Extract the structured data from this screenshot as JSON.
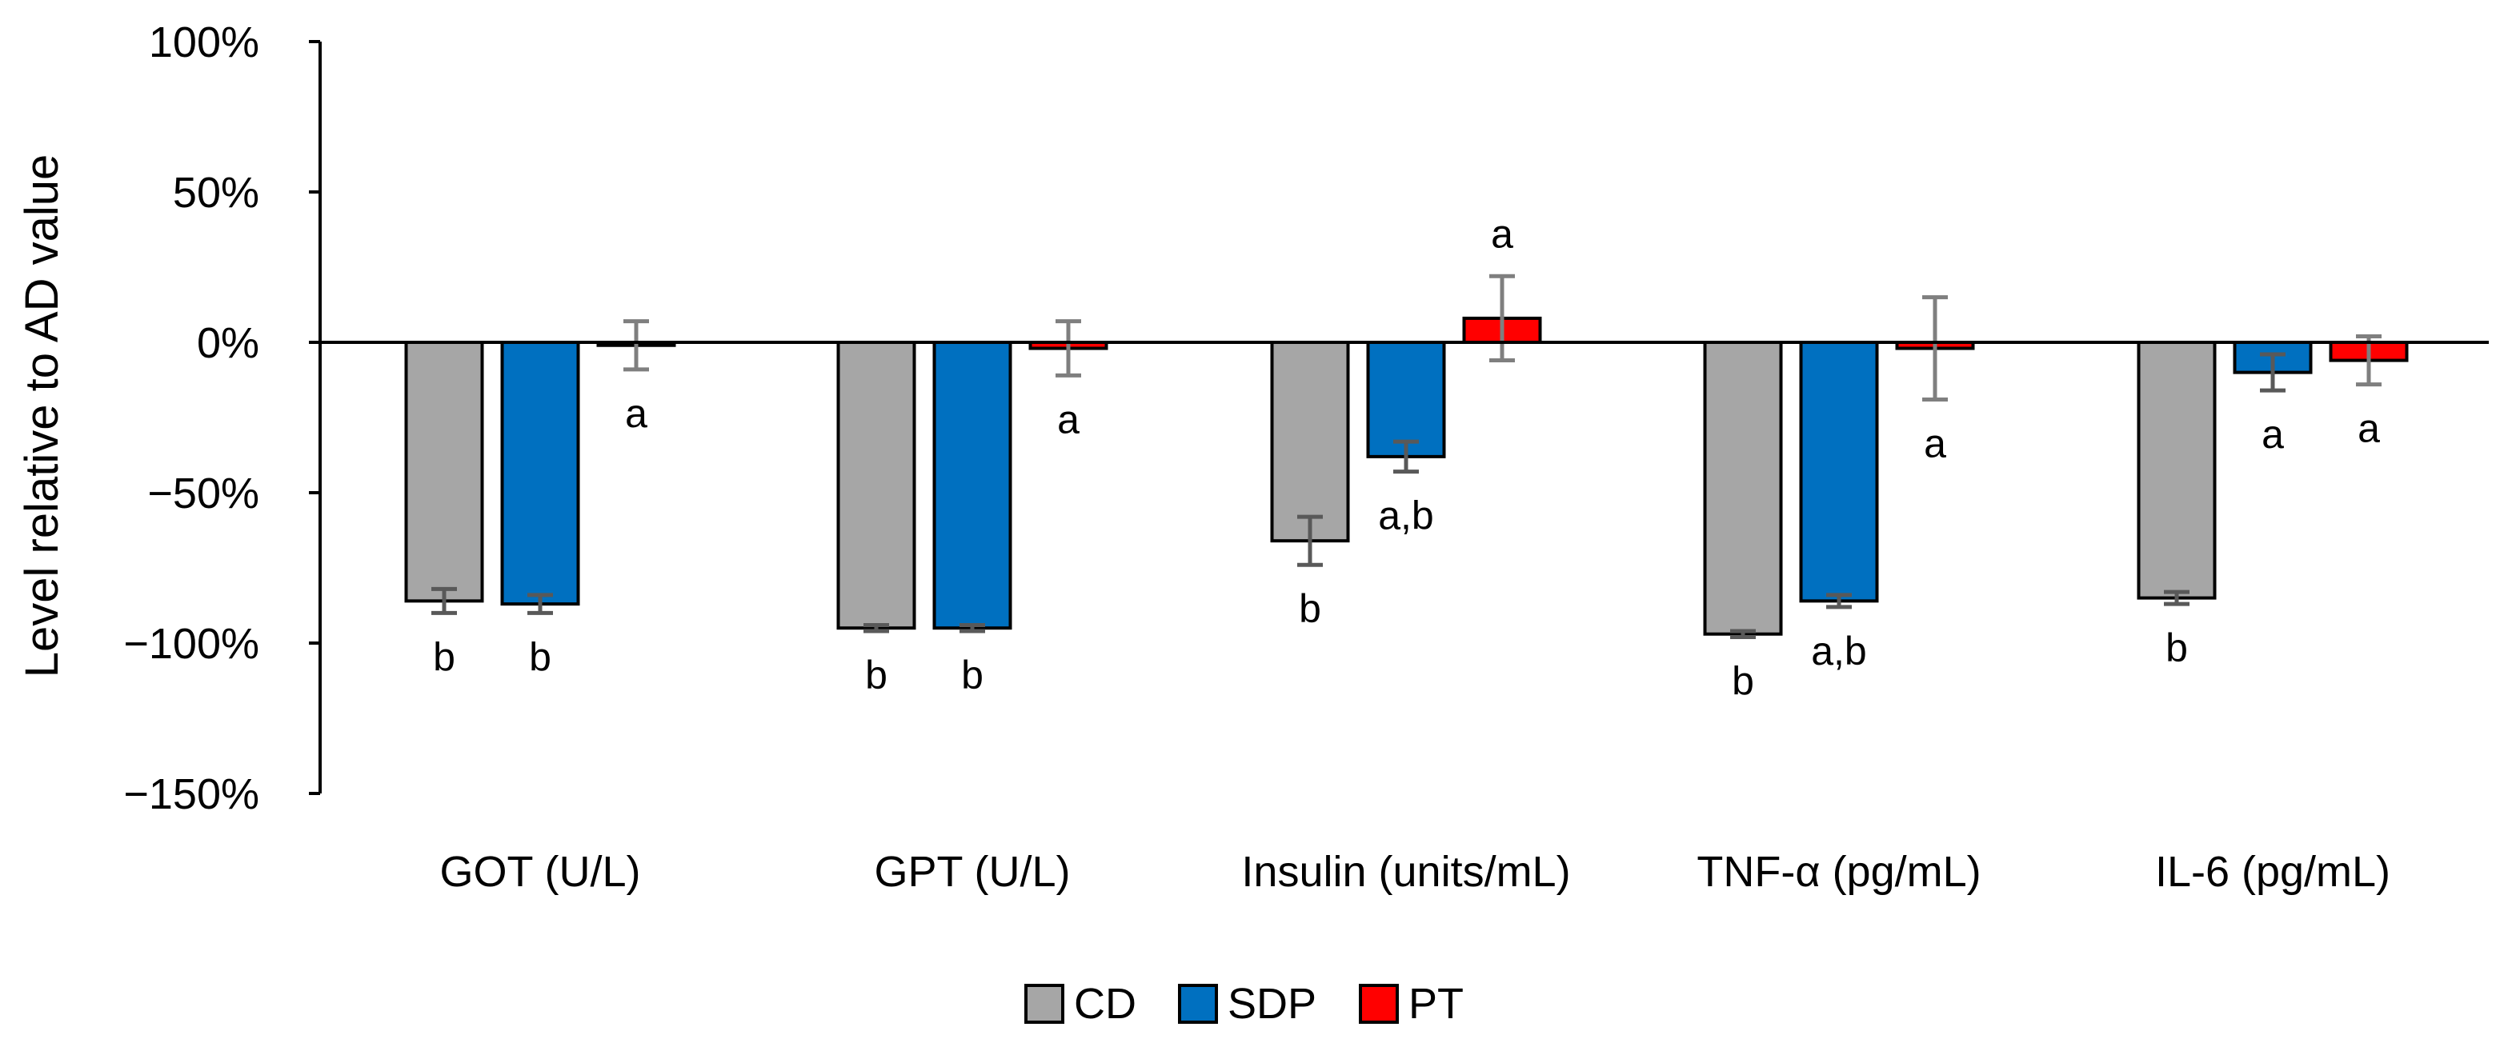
{
  "chart_data": {
    "type": "bar",
    "title": "",
    "xlabel": "",
    "ylabel": "Level relative to AD value",
    "ylim": [
      -150,
      100
    ],
    "ytick_values": [
      100,
      50,
      0,
      -50,
      -100,
      -150
    ],
    "ytick_labels": [
      "100%",
      "50%",
      "0%",
      "−50%",
      "−100%",
      "−150%"
    ],
    "grid": false,
    "legend_position": "bottom-center",
    "categories": [
      "GOT (U/L)",
      "GPT (U/L)",
      "Insulin (units/mL)",
      "TNF-α (pg/mL)",
      "IL-6 (pg/mL)"
    ],
    "series": [
      {
        "name": "CD",
        "color": "#a6a6a6",
        "values": [
          -86,
          -95,
          -66,
          -97,
          -85
        ],
        "errors": [
          4,
          1,
          8,
          1,
          2
        ],
        "letters": [
          "b",
          "b",
          "b",
          "b",
          "b"
        ]
      },
      {
        "name": "SDP",
        "color": "#0070c0",
        "values": [
          -87,
          -95,
          -38,
          -86,
          -10
        ],
        "errors": [
          3,
          1,
          5,
          2,
          6
        ],
        "letters": [
          "b",
          "b",
          "a,b",
          "a,b",
          "a"
        ]
      },
      {
        "name": "PT",
        "color": "#ff0000",
        "values": [
          -1,
          -2,
          8,
          -2,
          -6
        ],
        "errors": [
          8,
          9,
          14,
          17,
          8
        ],
        "letters": [
          "a",
          "a",
          "a",
          "a",
          "a"
        ]
      }
    ]
  }
}
